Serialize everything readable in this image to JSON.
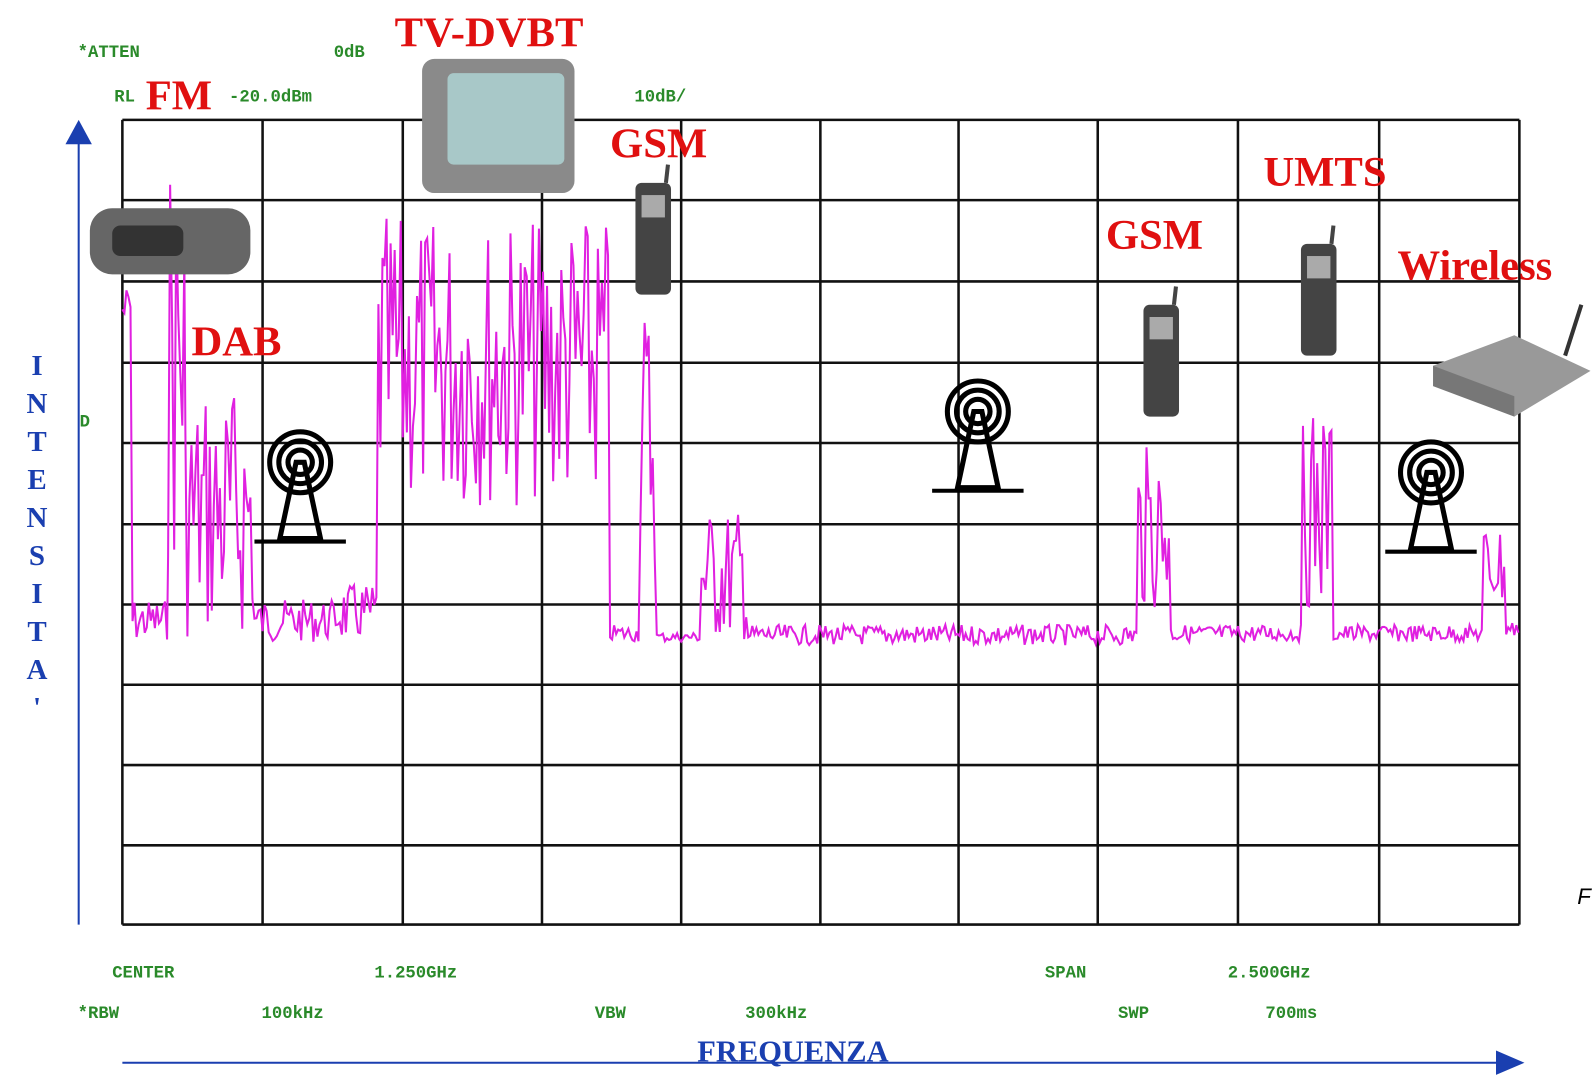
{
  "instrument": {
    "atten_label": "*ATTEN",
    "atten_value": "0dB",
    "ref_label": "RL",
    "ref_value": "-20.0dBm",
    "scale": "10dB/",
    "marker": "D"
  },
  "services": {
    "fm": "FM",
    "tv": "TV-DVBT",
    "gsm_low": "GSM",
    "dab": "DAB",
    "gsm_high": "GSM",
    "umts": "UMTS",
    "wireless": "Wireless"
  },
  "footer": {
    "center_label": "CENTER",
    "center_value": "1.250GHz",
    "span_label": "SPAN",
    "span_value": "2.500GHz",
    "rbw_label": "*RBW",
    "rbw_value": "100kHz",
    "vbw_label": "VBW",
    "vbw_value": "300kHz",
    "swp_label": "SWP",
    "swp_value": "700ms"
  },
  "axes": {
    "x_label": "FREQUENZA",
    "y_label": "INTENSITA'"
  },
  "edge_text": "F"
}
